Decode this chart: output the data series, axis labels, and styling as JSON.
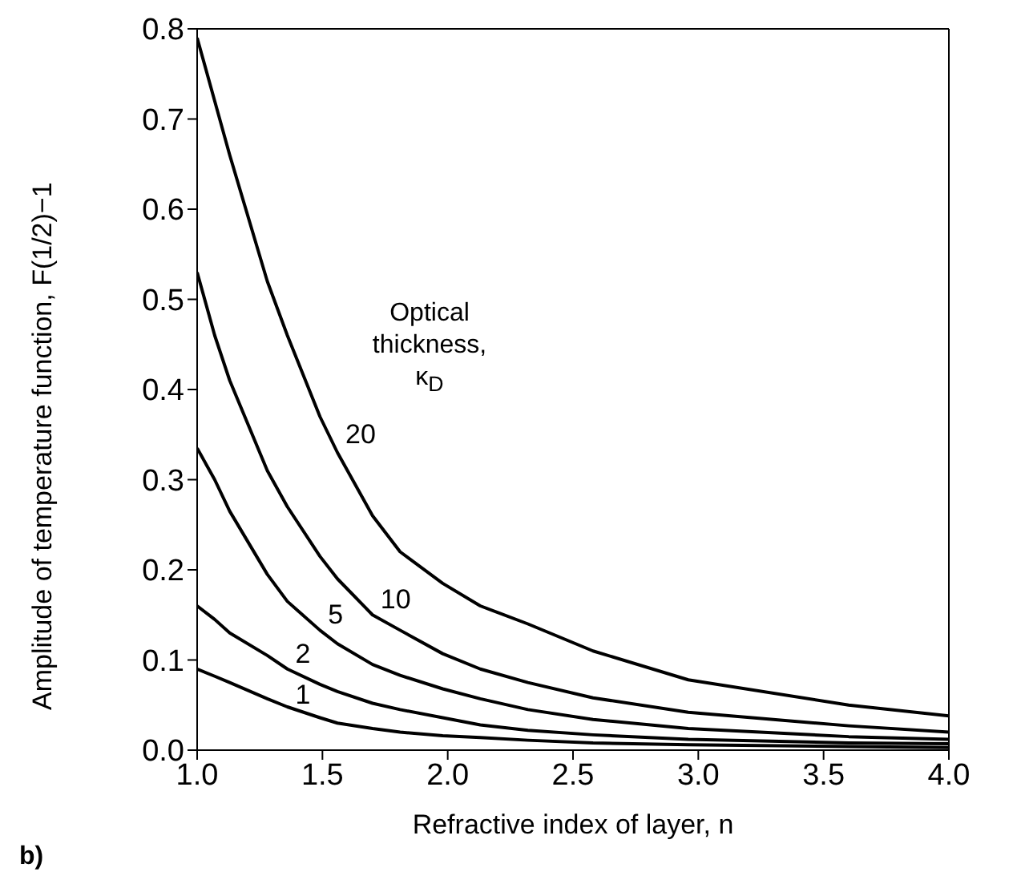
{
  "chart_data": {
    "type": "line",
    "xlabel": "Refractive index of layer, n",
    "ylabel": "Amplitude of temperature function, F(1/2)−1",
    "x": [
      1.0,
      1.07,
      1.13,
      1.28,
      1.36,
      1.49,
      1.56,
      1.7,
      1.81,
      1.98,
      2.13,
      2.32,
      2.58,
      2.96,
      3.6,
      4.0
    ],
    "series": [
      {
        "name": "20",
        "color": "#000000",
        "values": [
          0.79,
          0.72,
          0.66,
          0.52,
          0.46,
          0.37,
          0.33,
          0.26,
          0.22,
          0.185,
          0.16,
          0.14,
          0.11,
          0.078,
          0.05,
          0.038
        ]
      },
      {
        "name": "10",
        "color": "#000000",
        "values": [
          0.53,
          0.46,
          0.41,
          0.31,
          0.27,
          0.215,
          0.19,
          0.15,
          0.133,
          0.107,
          0.09,
          0.075,
          0.058,
          0.042,
          0.027,
          0.02
        ]
      },
      {
        "name": "5",
        "color": "#000000",
        "values": [
          0.335,
          0.3,
          0.265,
          0.195,
          0.165,
          0.133,
          0.118,
          0.095,
          0.083,
          0.068,
          0.057,
          0.045,
          0.034,
          0.024,
          0.015,
          0.012
        ]
      },
      {
        "name": "2",
        "color": "#000000",
        "values": [
          0.16,
          0.145,
          0.13,
          0.105,
          0.09,
          0.073,
          0.065,
          0.052,
          0.045,
          0.036,
          0.028,
          0.022,
          0.017,
          0.012,
          0.008,
          0.007
        ]
      },
      {
        "name": "1",
        "color": "#000000",
        "values": [
          0.09,
          0.082,
          0.075,
          0.057,
          0.048,
          0.036,
          0.03,
          0.024,
          0.02,
          0.016,
          0.014,
          0.011,
          0.008,
          0.006,
          0.004,
          0.003
        ]
      }
    ],
    "xlim": [
      1.0,
      4.0
    ],
    "xticks": [
      {
        "value": 1.0,
        "label": "1.0"
      },
      {
        "value": 1.5,
        "label": "1.5"
      },
      {
        "value": 2.0,
        "label": "2.0"
      },
      {
        "value": 2.5,
        "label": "2.5"
      },
      {
        "value": 3.0,
        "label": "3.0"
      },
      {
        "value": 3.5,
        "label": "3.5"
      },
      {
        "value": 4.0,
        "label": "4.0"
      }
    ],
    "ylim": [
      0,
      0.8
    ],
    "yticks": [
      {
        "value": 0,
        "label": "0.0"
      },
      {
        "value": 0.1,
        "label": "0.1"
      },
      {
        "value": 0.2,
        "label": "0.2"
      },
      {
        "value": 0.3,
        "label": "0.3"
      },
      {
        "value": 0.4,
        "label": "0.4"
      },
      {
        "value": 0.5,
        "label": "0.5"
      },
      {
        "value": 0.6,
        "label": "0.6"
      },
      {
        "value": 0.7,
        "label": "0.7"
      },
      {
        "value": 0.8,
        "label": "0.8"
      }
    ],
    "annotations": [
      "Optical thickness, κ$_{D}$",
      "b)"
    ],
    "grid": false,
    "legend": false,
    "marker": "none",
    "line_style": "solid"
  }
}
